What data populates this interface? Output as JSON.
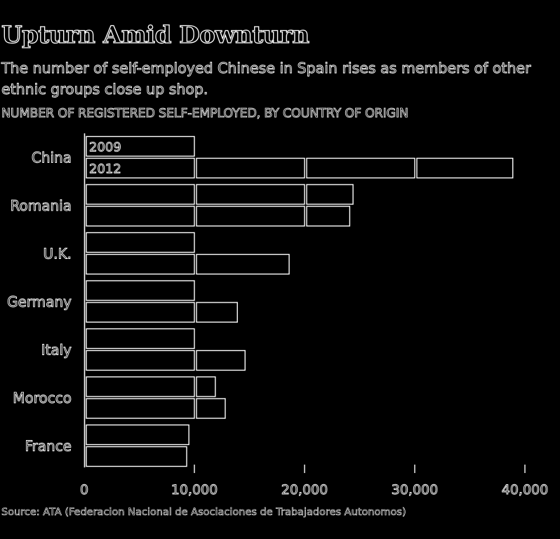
{
  "title": "Upturn Amid Downturn",
  "subtitle": "The number of self-employed Chinese in Spain rises as members of other ethnic groups close up shop.",
  "heading": "NUMBER OF REGISTERED SELF-EMPLOYED, BY COUNTRY OF ORIGIN",
  "source": "Source: ATA (Federacion Nacional de Asociaciones de Trabajadores Autonomos)",
  "chart_data": {
    "type": "bar",
    "orientation": "horizontal",
    "categories": [
      "China",
      "Romania",
      "U.K.",
      "Germany",
      "Italy",
      "Morocco",
      "France"
    ],
    "series": [
      {
        "name": "2009",
        "values": [
          10000,
          24400,
          10000,
          10000,
          10000,
          11900,
          9500
        ]
      },
      {
        "name": "2012",
        "values": [
          38900,
          24100,
          18600,
          13900,
          14600,
          12800,
          9300
        ]
      }
    ],
    "xlim": [
      0,
      40000
    ],
    "xticks": [
      "0",
      "10,000",
      "20,000",
      "30,000",
      "40,000"
    ],
    "segment_size": 10000,
    "legend_placement": "inside-first-bars",
    "grid": false,
    "colors": {
      "background": "#000000",
      "line": "#ffffff"
    }
  }
}
